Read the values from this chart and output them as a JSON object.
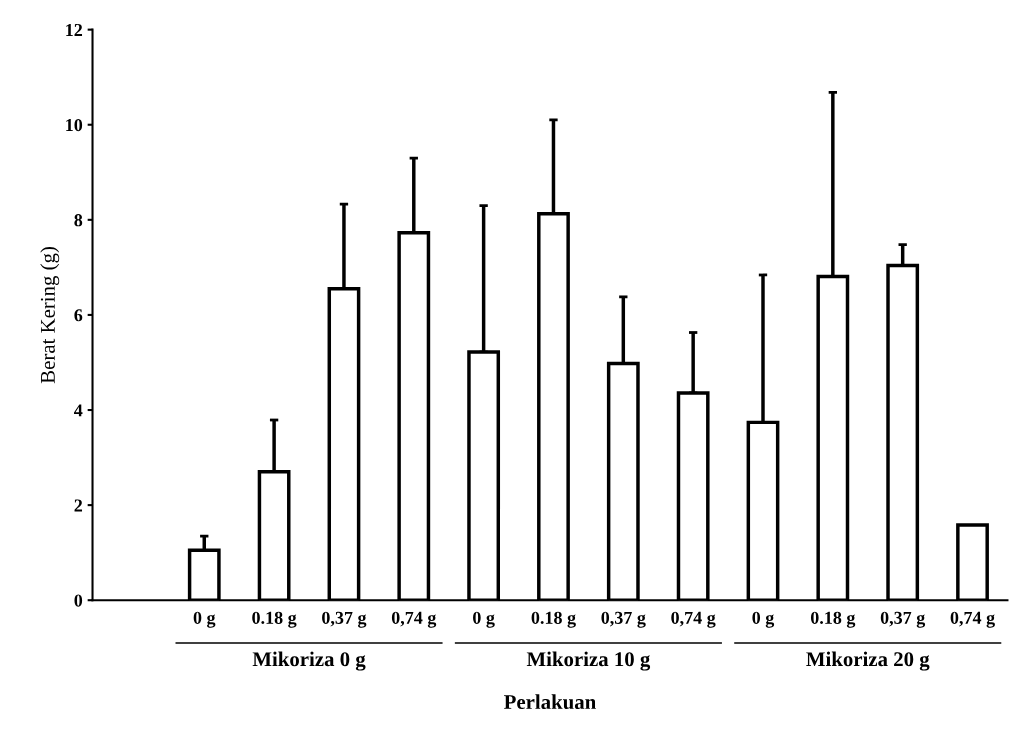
{
  "chart_data": {
    "type": "bar",
    "xlabel": "Perlakuan",
    "ylabel": "Berat Kering (g)",
    "categories": [
      null,
      "0 g",
      "0.18 g",
      "0,37 g",
      "0,74 g",
      "0 g",
      "0.18 g",
      "0,37 g",
      "0,74 g",
      "0 g",
      "0.18 g",
      "0,37 g",
      "0,74 g"
    ],
    "values": [
      null,
      1.05,
      2.7,
      6.55,
      7.73,
      5.22,
      8.13,
      4.98,
      4.36,
      3.74,
      6.81,
      7.04,
      1.58
    ],
    "errors": [
      null,
      [
        1.05,
        1.35
      ],
      [
        2.7,
        3.79
      ],
      [
        6.55,
        8.33
      ],
      [
        7.73,
        9.3
      ],
      [
        5.22,
        8.3
      ],
      [
        8.13,
        10.1
      ],
      [
        4.98,
        6.38
      ],
      [
        4.36,
        5.63
      ],
      [
        3.74,
        6.84
      ],
      [
        6.81,
        10.68
      ],
      [
        7.04,
        7.48
      ],
      null
    ],
    "color": "#ffffff",
    "ylim": [
      0,
      12
    ],
    "yticks": [
      0,
      2,
      4,
      6,
      8,
      10,
      12
    ],
    "grid": false,
    "legend": false,
    "annotations": [
      "Mikoriza 0 g",
      "Mikoriza 10 g",
      "Mikoriza 20 g"
    ]
  }
}
